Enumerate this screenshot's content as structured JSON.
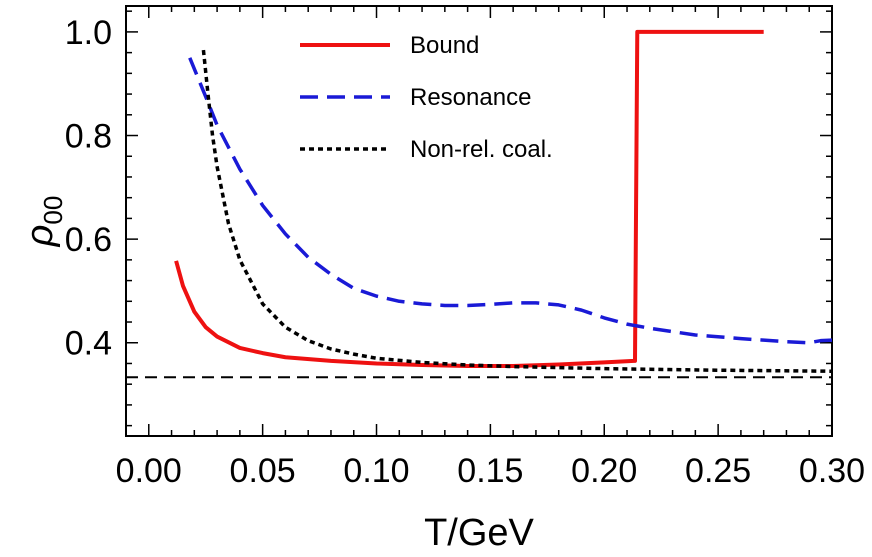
{
  "chart_data": {
    "type": "line",
    "xlabel": "T/GeV",
    "ylabel": {
      "base": "ρ",
      "sub": "00"
    },
    "xlim": [
      -0.01,
      0.3
    ],
    "ylim": [
      0.22,
      1.05
    ],
    "xticks": [
      "0.00",
      "0.05",
      "0.10",
      "0.15",
      "0.20",
      "0.25",
      "0.30"
    ],
    "xtick_values": [
      0.0,
      0.05,
      0.1,
      0.15,
      0.2,
      0.25,
      0.3
    ],
    "yticks": [
      "0.4",
      "0.6",
      "0.8",
      "1.0"
    ],
    "ytick_values": [
      0.4,
      0.6,
      0.8,
      1.0
    ],
    "grid": false,
    "legend_position": "top-center",
    "series": [
      {
        "name": "Bound",
        "color": "#ee1111",
        "style": "solid",
        "x": [
          0.012,
          0.015,
          0.02,
          0.025,
          0.03,
          0.04,
          0.05,
          0.06,
          0.08,
          0.1,
          0.12,
          0.14,
          0.16,
          0.18,
          0.2,
          0.213,
          0.2135,
          0.2145,
          0.23,
          0.25,
          0.27
        ],
        "y": [
          0.558,
          0.51,
          0.46,
          0.43,
          0.412,
          0.39,
          0.38,
          0.372,
          0.365,
          0.36,
          0.357,
          0.355,
          0.355,
          0.358,
          0.362,
          0.365,
          0.365,
          1.0,
          1.0,
          1.0,
          1.0
        ]
      },
      {
        "name": "Resonance",
        "color": "#1a1ad6",
        "style": "dashed",
        "x": [
          0.018,
          0.025,
          0.03,
          0.04,
          0.05,
          0.06,
          0.07,
          0.08,
          0.09,
          0.1,
          0.11,
          0.12,
          0.13,
          0.14,
          0.15,
          0.16,
          0.17,
          0.18,
          0.19,
          0.2,
          0.21,
          0.22,
          0.24,
          0.26,
          0.28,
          0.29,
          0.295,
          0.3
        ],
        "y": [
          0.95,
          0.875,
          0.82,
          0.735,
          0.665,
          0.61,
          0.565,
          0.532,
          0.505,
          0.49,
          0.48,
          0.475,
          0.472,
          0.472,
          0.474,
          0.477,
          0.477,
          0.473,
          0.463,
          0.448,
          0.436,
          0.428,
          0.415,
          0.408,
          0.402,
          0.4,
          0.404,
          0.405
        ]
      },
      {
        "name": "Non-rel. coal.",
        "color": "#000000",
        "style": "dotted",
        "x": [
          0.024,
          0.026,
          0.028,
          0.03,
          0.035,
          0.04,
          0.05,
          0.06,
          0.07,
          0.08,
          0.09,
          0.1,
          0.12,
          0.14,
          0.16,
          0.2,
          0.25,
          0.3
        ],
        "y": [
          0.965,
          0.88,
          0.8,
          0.74,
          0.63,
          0.56,
          0.475,
          0.43,
          0.404,
          0.388,
          0.378,
          0.37,
          0.362,
          0.357,
          0.354,
          0.35,
          0.347,
          0.345
        ]
      }
    ],
    "reference_line": {
      "y": 0.3333,
      "style": "dashed",
      "color": "#000000"
    }
  }
}
